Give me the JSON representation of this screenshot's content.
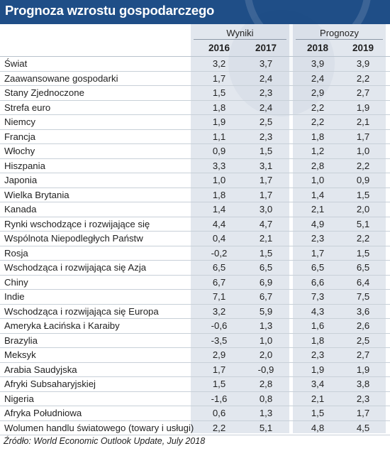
{
  "title": "Prognoza wzrostu gospodarczego",
  "source": "Źródło: World Economic Outlook Update, July 2018",
  "colors": {
    "header": "#1f4e87",
    "shade": "#e2e7ee"
  },
  "chart_data": {
    "type": "table",
    "groups": [
      "Wyniki",
      "Prognozy"
    ],
    "columns": [
      "2016",
      "2017",
      "2018",
      "2019"
    ],
    "rows": [
      {
        "label": "Świat",
        "values": [
          "3,2",
          "3,7",
          "3,9",
          "3,9"
        ]
      },
      {
        "label": "Zaawansowane gospodarki",
        "values": [
          "1,7",
          "2,4",
          "2,4",
          "2,2"
        ]
      },
      {
        "label": "Stany Zjednoczone",
        "values": [
          "1,5",
          "2,3",
          "2,9",
          "2,7"
        ]
      },
      {
        "label": "Strefa euro",
        "values": [
          "1,8",
          "2,4",
          "2,2",
          "1,9"
        ]
      },
      {
        "label": "Niemcy",
        "values": [
          "1,9",
          "2,5",
          "2,2",
          "2,1"
        ]
      },
      {
        "label": "Francja",
        "values": [
          "1,1",
          "2,3",
          "1,8",
          "1,7"
        ]
      },
      {
        "label": "Włochy",
        "values": [
          "0,9",
          "1,5",
          "1,2",
          "1,0"
        ]
      },
      {
        "label": "Hiszpania",
        "values": [
          "3,3",
          "3,1",
          "2,8",
          "2,2"
        ]
      },
      {
        "label": "Japonia",
        "values": [
          "1,0",
          "1,7",
          "1,0",
          "0,9"
        ]
      },
      {
        "label": "Wielka Brytania",
        "values": [
          "1,8",
          "1,7",
          "1,4",
          "1,5"
        ]
      },
      {
        "label": "Kanada",
        "values": [
          "1,4",
          "3,0",
          "2,1",
          "2,0"
        ]
      },
      {
        "label": "Rynki wschodzące i rozwijające się",
        "values": [
          "4,4",
          "4,7",
          "4,9",
          "5,1"
        ]
      },
      {
        "label": "Wspólnota Niepodległych Państw",
        "values": [
          "0,4",
          "2,1",
          "2,3",
          "2,2"
        ]
      },
      {
        "label": "Rosja",
        "values": [
          "-0,2",
          "1,5",
          "1,7",
          "1,5"
        ]
      },
      {
        "label": "Wschodząca i rozwijająca się Azja",
        "values": [
          "6,5",
          "6,5",
          "6,5",
          "6,5"
        ]
      },
      {
        "label": "Chiny",
        "values": [
          "6,7",
          "6,9",
          "6,6",
          "6,4"
        ]
      },
      {
        "label": "Indie",
        "values": [
          "7,1",
          "6,7",
          "7,3",
          "7,5"
        ]
      },
      {
        "label": "Wschodząca i rozwijająca się Europa",
        "values": [
          "3,2",
          "5,9",
          "4,3",
          "3,6"
        ]
      },
      {
        "label": "Ameryka Łacińska i Karaiby",
        "values": [
          "-0,6",
          "1,3",
          "1,6",
          "2,6"
        ]
      },
      {
        "label": "Brazylia",
        "values": [
          "-3,5",
          "1,0",
          "1,8",
          "2,5"
        ]
      },
      {
        "label": "Meksyk",
        "values": [
          "2,9",
          "2,0",
          "2,3",
          "2,7"
        ]
      },
      {
        "label": "Arabia Saudyjska",
        "values": [
          "1,7",
          "-0,9",
          "1,9",
          "1,9"
        ]
      },
      {
        "label": "Afryki Subsaharyjskiej",
        "values": [
          "1,5",
          "2,8",
          "3,4",
          "3,8"
        ]
      },
      {
        "label": "Nigeria",
        "values": [
          "-1,6",
          "0,8",
          "2,1",
          "2,3"
        ]
      },
      {
        "label": "Afryka Południowa",
        "values": [
          "0,6",
          "1,3",
          "1,5",
          "1,7"
        ]
      },
      {
        "label": "Wolumen handlu światowego (towary i usługi)",
        "values": [
          "2,2",
          "5,1",
          "4,8",
          "4,5"
        ]
      }
    ]
  }
}
